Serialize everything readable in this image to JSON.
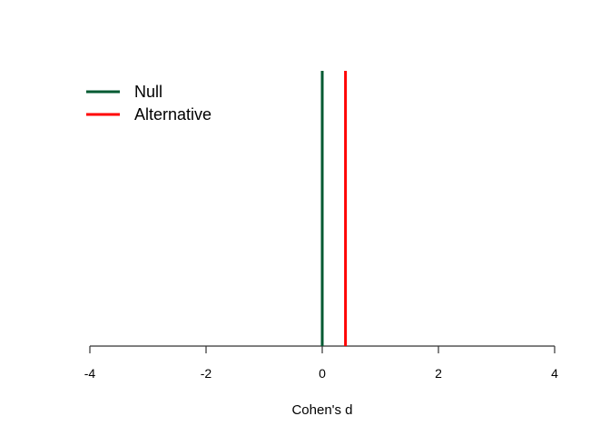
{
  "chart_data": {
    "type": "line",
    "title": "",
    "xlabel": "Cohen's d",
    "ylabel": "",
    "xlim": [
      -4,
      4
    ],
    "x_ticks": [
      -4,
      -2,
      0,
      2,
      4
    ],
    "x_tick_labels": [
      "-4",
      "-2",
      "0",
      "2",
      "4"
    ],
    "grid": false,
    "legend_position": "top-left",
    "series": [
      {
        "name": "Null",
        "x": 0,
        "color": "#005a32"
      },
      {
        "name": "Alternative",
        "x": 0.4,
        "color": "#ff0000"
      }
    ]
  }
}
